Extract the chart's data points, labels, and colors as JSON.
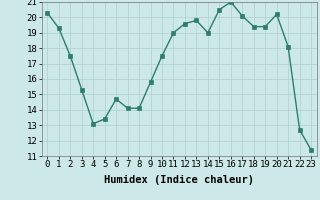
{
  "x": [
    0,
    1,
    2,
    3,
    4,
    5,
    6,
    7,
    8,
    9,
    10,
    11,
    12,
    13,
    14,
    15,
    16,
    17,
    18,
    19,
    20,
    21,
    22,
    23
  ],
  "y": [
    20.3,
    19.3,
    17.5,
    15.3,
    13.1,
    13.4,
    14.7,
    14.1,
    14.1,
    15.8,
    17.5,
    19.0,
    19.6,
    19.8,
    19.0,
    20.5,
    21.0,
    20.1,
    19.4,
    19.4,
    20.2,
    18.1,
    12.7,
    11.4
  ],
  "line_color": "#2e7d6e",
  "marker_color": "#2e7d6e",
  "bg_color": "#cce8e8",
  "grid_color": "#aed0d0",
  "xlabel": "Humidex (Indice chaleur)",
  "ylim": [
    11,
    21
  ],
  "xlim": [
    -0.5,
    23.5
  ],
  "yticks": [
    11,
    12,
    13,
    14,
    15,
    16,
    17,
    18,
    19,
    20,
    21
  ],
  "xticks": [
    0,
    1,
    2,
    3,
    4,
    5,
    6,
    7,
    8,
    9,
    10,
    11,
    12,
    13,
    14,
    15,
    16,
    17,
    18,
    19,
    20,
    21,
    22,
    23
  ],
  "xlabel_fontsize": 7.5,
  "tick_fontsize": 6.5,
  "line_width": 1.0,
  "marker_size": 2.5
}
